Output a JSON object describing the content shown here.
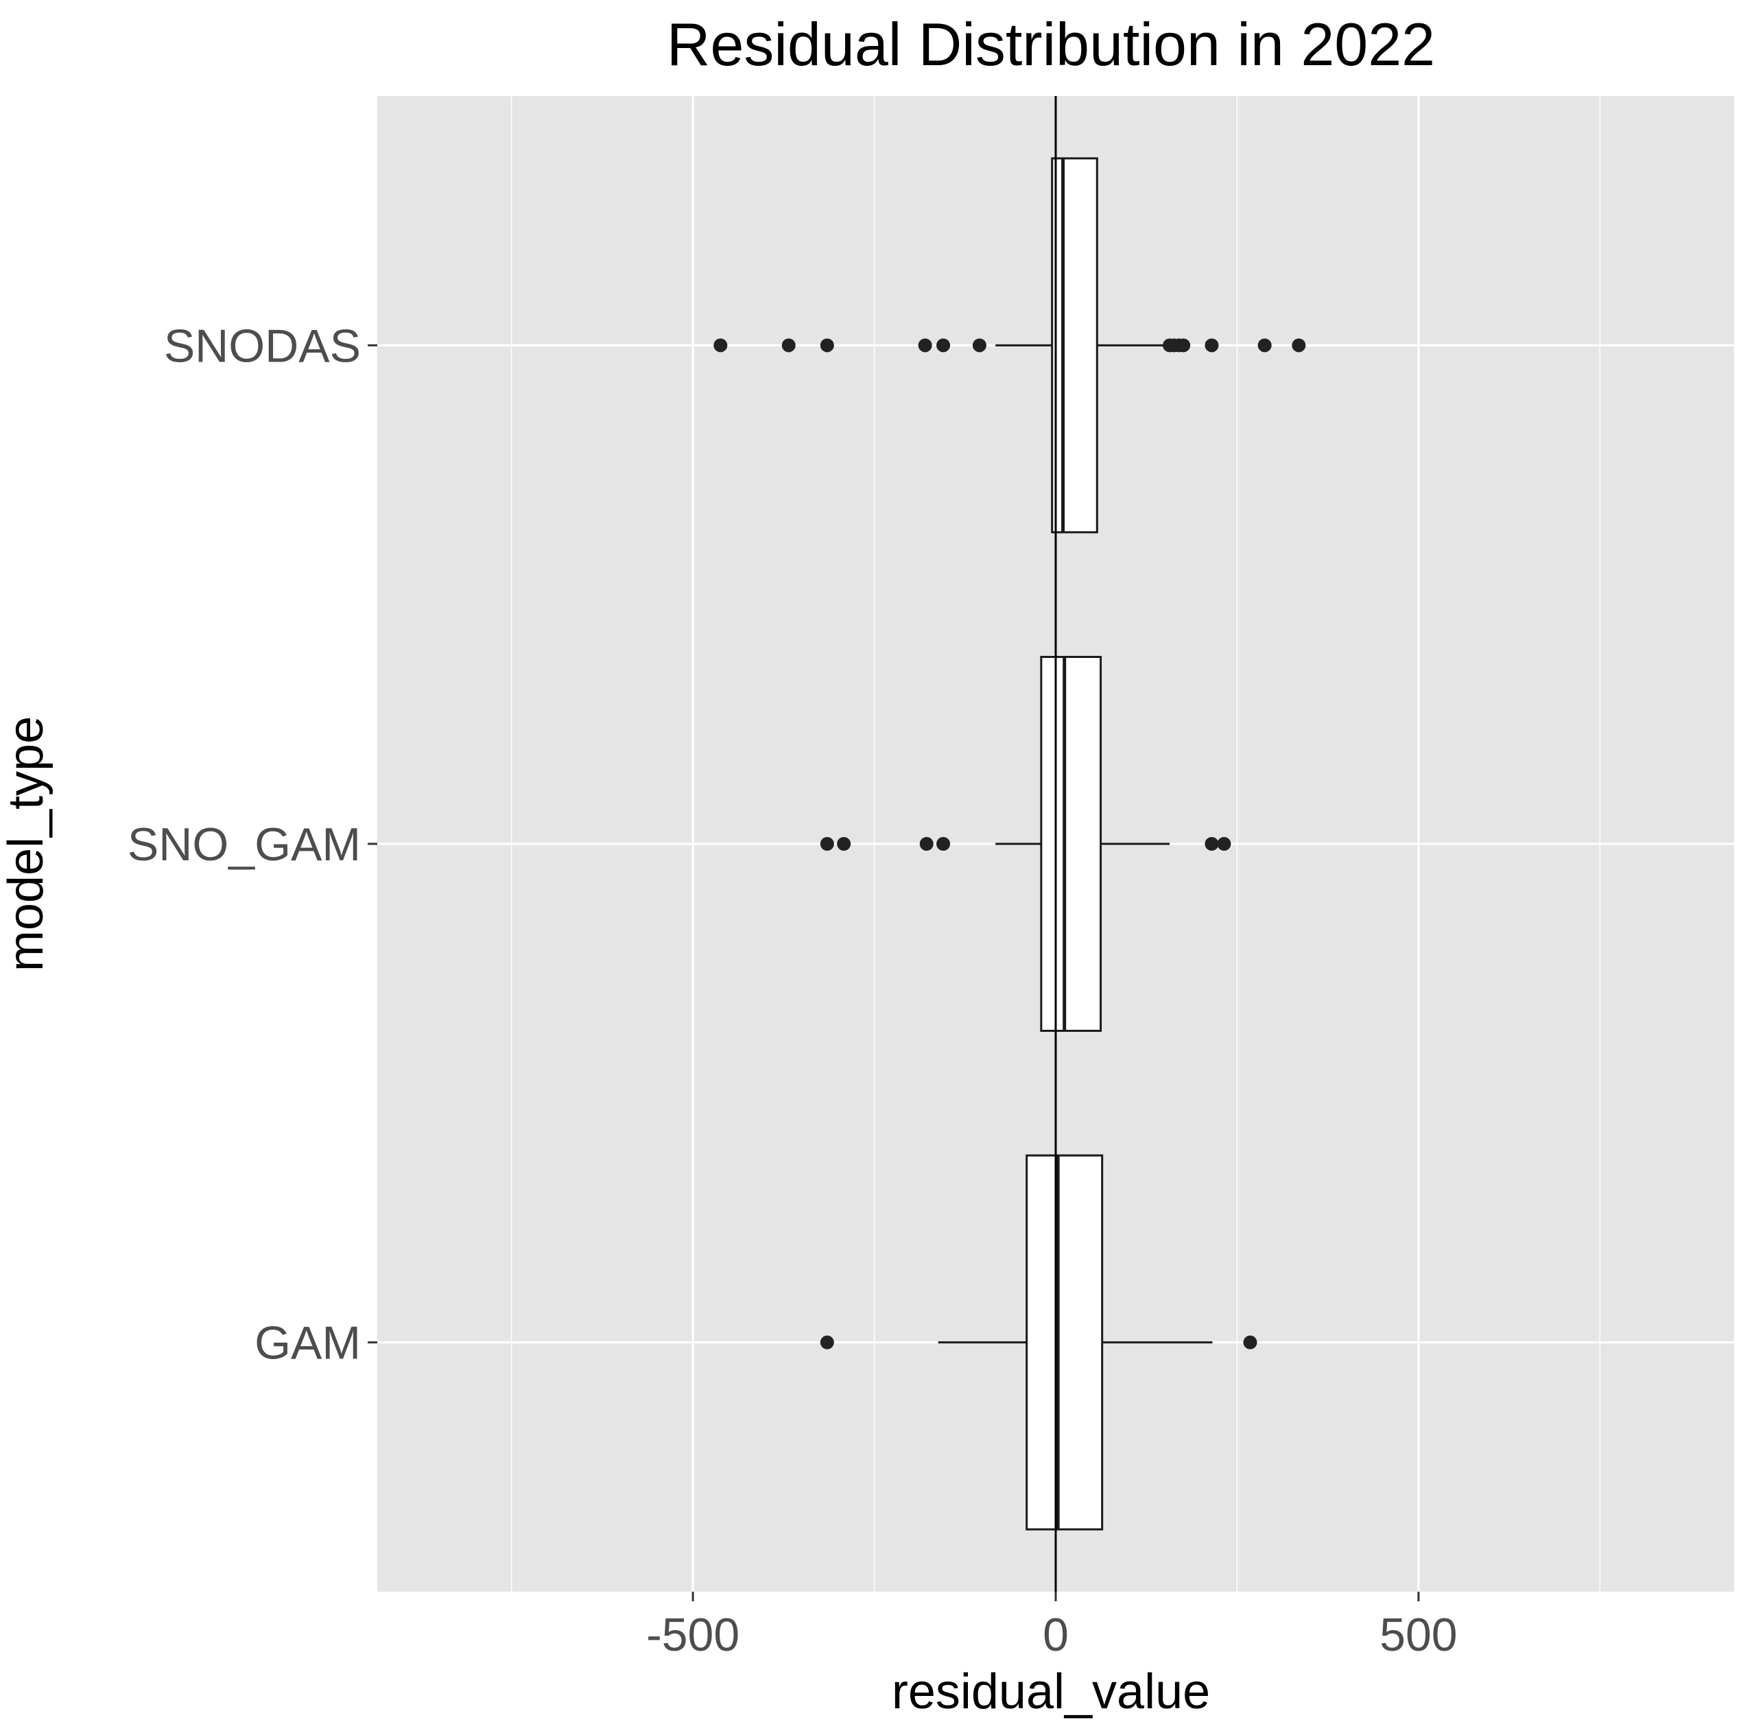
{
  "chart_data": {
    "type": "boxplot",
    "orientation": "horizontal",
    "title": "Residual Distribution in 2022",
    "xlabel": "residual_value",
    "ylabel": "model_type",
    "xlim": [
      -935,
      935
    ],
    "x_ticks": [
      -500,
      0,
      500
    ],
    "x_tick_labels": [
      "-500",
      "0",
      "500"
    ],
    "x_minor_gridlines": [
      -750,
      -250,
      250,
      750
    ],
    "grid": true,
    "reference_line_x": 0,
    "colors": {
      "panel_background": "#e5e5e5",
      "gridline": "#ffffff",
      "box_fill": "#ffffff",
      "box_stroke": "#1a1a1a",
      "outlier": "#222222",
      "tick_label": "#4d4d4d"
    },
    "categories": [
      "SNODAS",
      "SNO_GAM",
      "GAM"
    ],
    "boxes": [
      {
        "category": "SNODAS",
        "whisker_low": -83,
        "q1": -5,
        "median": 10,
        "q3": 57,
        "whisker_high": 148,
        "outliers": [
          -462,
          -368,
          -315,
          -180,
          -155,
          -105,
          157,
          163,
          170,
          176,
          215,
          288,
          335
        ]
      },
      {
        "category": "SNO_GAM",
        "whisker_low": -83,
        "q1": -20,
        "median": 12,
        "q3": 62,
        "whisker_high": 157,
        "outliers": [
          -315,
          -292,
          -178,
          -155,
          215,
          232
        ]
      },
      {
        "category": "GAM",
        "whisker_low": -162,
        "q1": -40,
        "median": 3,
        "q3": 64,
        "whisker_high": 216,
        "outliers": [
          -315,
          268
        ]
      }
    ]
  }
}
